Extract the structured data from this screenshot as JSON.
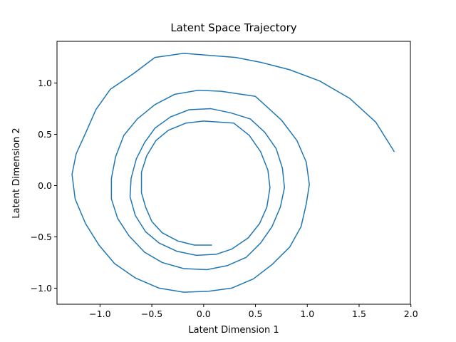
{
  "chart_data": {
    "type": "line",
    "title": "Latent Space Trajectory",
    "x_label": "Latent Dimension 1",
    "y_label": "Latent Dimension 2",
    "xlim": [
      -1.415,
      1.995
    ],
    "ylim": [
      -1.157,
      1.407
    ],
    "xticks": [
      {
        "value": -1.0,
        "label": "−1.0"
      },
      {
        "value": -0.5,
        "label": "−0.5"
      },
      {
        "value": 0.0,
        "label": "0.0"
      },
      {
        "value": 0.5,
        "label": "0.5"
      },
      {
        "value": 1.0,
        "label": "1.0"
      },
      {
        "value": 1.5,
        "label": "1.5"
      },
      {
        "value": 2.0,
        "label": "2.0"
      }
    ],
    "yticks": [
      {
        "value": -1.0,
        "label": "−1.0"
      },
      {
        "value": -0.5,
        "label": "−0.5"
      },
      {
        "value": 0.0,
        "label": "0.0"
      },
      {
        "value": 0.5,
        "label": "0.5"
      },
      {
        "value": 1.0,
        "label": "1.0"
      }
    ],
    "series": [
      {
        "color": "#1f77b4",
        "x": [
          1.84,
          1.66,
          1.41,
          1.12,
          0.83,
          0.56,
          0.31,
          -0.19,
          -0.47,
          -0.68,
          -0.9,
          -1.04,
          -1.14,
          -1.23,
          -1.27,
          -1.24,
          -1.14,
          -1.01,
          -0.86,
          -0.66,
          -0.43,
          -0.19,
          0.05,
          0.27,
          0.48,
          0.66,
          0.83,
          0.94,
          0.99,
          1.02,
          0.99,
          0.9,
          0.75,
          0.5,
          0.17,
          -0.05,
          -0.28,
          -0.47,
          -0.64,
          -0.77,
          -0.85,
          -0.89,
          -0.89,
          -0.83,
          -0.72,
          -0.57,
          -0.4,
          -0.19,
          0.03,
          0.23,
          0.41,
          0.55,
          0.66,
          0.74,
          0.78,
          0.76,
          0.7,
          0.59,
          0.45,
          0.26,
          0.07,
          -0.14,
          -0.32,
          -0.47,
          -0.57,
          -0.65,
          -0.7,
          -0.71,
          -0.66,
          -0.56,
          -0.43,
          -0.26,
          -0.07,
          0.12,
          0.27,
          0.43,
          0.54,
          0.61,
          0.64,
          0.62,
          0.55,
          0.44,
          0.29,
          0.0,
          -0.17,
          -0.34,
          -0.46,
          -0.55,
          -0.6,
          -0.6,
          -0.56,
          -0.5,
          -0.4,
          -0.25,
          -0.09,
          0.08
        ],
        "values": [
          0.33,
          0.62,
          0.85,
          1.02,
          1.13,
          1.2,
          1.25,
          1.29,
          1.25,
          1.09,
          0.94,
          0.74,
          0.51,
          0.31,
          0.11,
          -0.13,
          -0.37,
          -0.58,
          -0.76,
          -0.9,
          -1.0,
          -1.04,
          -1.03,
          -1.0,
          -0.91,
          -0.77,
          -0.6,
          -0.4,
          -0.18,
          0.01,
          0.23,
          0.44,
          0.64,
          0.87,
          0.92,
          0.93,
          0.89,
          0.79,
          0.65,
          0.49,
          0.28,
          0.07,
          -0.13,
          -0.32,
          -0.49,
          -0.65,
          -0.75,
          -0.81,
          -0.82,
          -0.78,
          -0.7,
          -0.56,
          -0.4,
          -0.21,
          -0.02,
          0.17,
          0.36,
          0.52,
          0.65,
          0.71,
          0.75,
          0.74,
          0.67,
          0.56,
          0.42,
          0.26,
          0.07,
          -0.11,
          -0.29,
          -0.45,
          -0.56,
          -0.64,
          -0.68,
          -0.67,
          -0.62,
          -0.51,
          -0.37,
          -0.21,
          -0.02,
          0.15,
          0.33,
          0.49,
          0.61,
          0.63,
          0.61,
          0.54,
          0.44,
          0.29,
          0.13,
          -0.07,
          -0.21,
          -0.35,
          -0.46,
          -0.54,
          -0.58,
          -0.58
        ]
      }
    ]
  }
}
